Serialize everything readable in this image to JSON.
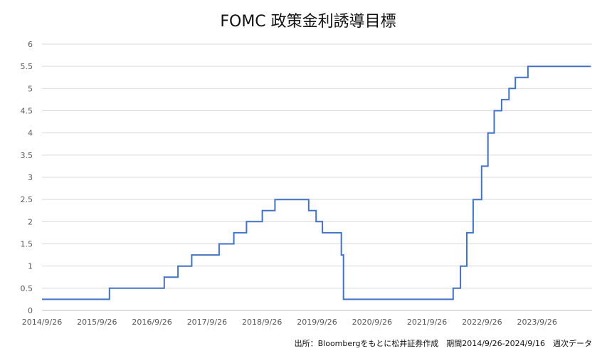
{
  "chart_data": {
    "type": "line",
    "title": "FOMC 政策金利誘導目標",
    "xlabel": "",
    "ylabel": "",
    "ylim": [
      0,
      6
    ],
    "y_ticks": [
      "0",
      "0.5",
      "1",
      "1.5",
      "2",
      "2.5",
      "3",
      "3.5",
      "4",
      "4.5",
      "5",
      "5.5",
      "6"
    ],
    "x_ticks": [
      "2014/9/26",
      "2015/9/26",
      "2016/9/26",
      "2017/9/26",
      "2018/9/26",
      "2019/9/26",
      "2020/9/26",
      "2021/9/26",
      "2022/9/26",
      "2023/9/26"
    ],
    "xlim": [
      "2014-09-26",
      "2024-09-16"
    ],
    "grid": true,
    "legend": "none",
    "line_color": "#4472c4",
    "source_note": "出所：Bloombergをもとに松井証券作成　期間2014/9/26-2024/9/16　週次データ",
    "series": [
      {
        "step": true,
        "points": [
          {
            "x": "2014-09-26",
            "y": 0.25
          },
          {
            "x": "2015-12-18",
            "y": 0.5
          },
          {
            "x": "2016-12-16",
            "y": 0.75
          },
          {
            "x": "2017-03-17",
            "y": 1.0
          },
          {
            "x": "2017-06-16",
            "y": 1.25
          },
          {
            "x": "2017-12-15",
            "y": 1.5
          },
          {
            "x": "2018-03-23",
            "y": 1.75
          },
          {
            "x": "2018-06-15",
            "y": 2.0
          },
          {
            "x": "2018-09-28",
            "y": 2.25
          },
          {
            "x": "2018-12-21",
            "y": 2.5
          },
          {
            "x": "2019-08-02",
            "y": 2.25
          },
          {
            "x": "2019-09-20",
            "y": 2.0
          },
          {
            "x": "2019-11-01",
            "y": 1.75
          },
          {
            "x": "2020-03-06",
            "y": 1.25
          },
          {
            "x": "2020-03-20",
            "y": 0.25
          },
          {
            "x": "2022-03-18",
            "y": 0.5
          },
          {
            "x": "2022-05-06",
            "y": 1.0
          },
          {
            "x": "2022-06-17",
            "y": 1.75
          },
          {
            "x": "2022-07-29",
            "y": 2.5
          },
          {
            "x": "2022-09-23",
            "y": 3.25
          },
          {
            "x": "2022-11-04",
            "y": 4.0
          },
          {
            "x": "2022-12-16",
            "y": 4.5
          },
          {
            "x": "2023-02-03",
            "y": 4.75
          },
          {
            "x": "2023-03-24",
            "y": 5.0
          },
          {
            "x": "2023-05-05",
            "y": 5.25
          },
          {
            "x": "2023-07-28",
            "y": 5.5
          },
          {
            "x": "2024-09-16",
            "y": 5.5
          }
        ]
      }
    ]
  }
}
